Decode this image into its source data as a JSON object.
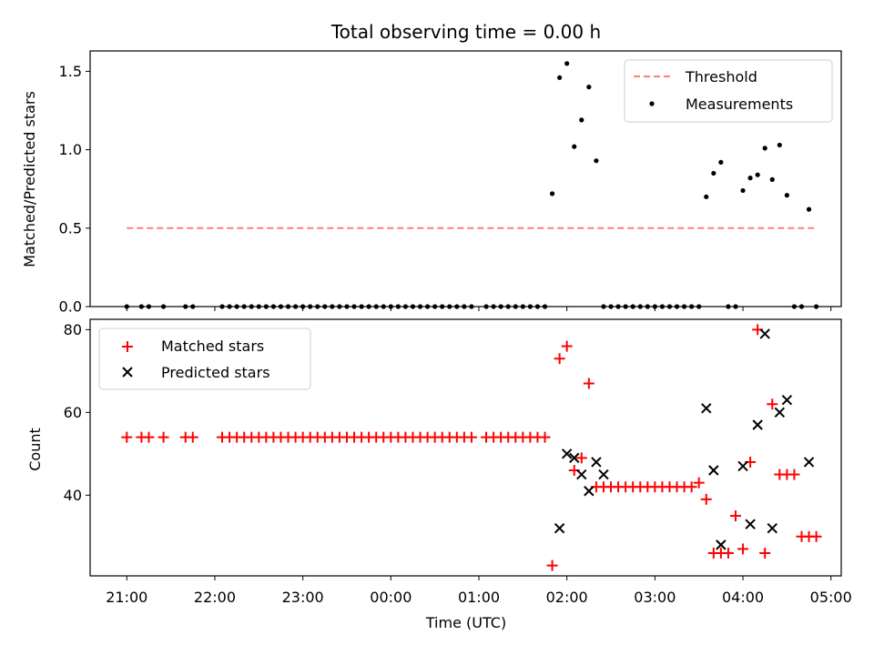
{
  "colors": {
    "threshold": "#ff7f7f",
    "measurements": "#000000",
    "matched": "#ff0000",
    "predicted": "#000000"
  },
  "chart_data": [
    {
      "type": "scatter",
      "title": "Total observing time = 0.00 h",
      "xlabel": "",
      "ylabel": "Matched/Predicted stars",
      "xlim": [
        "20:35",
        "05:07"
      ],
      "ylim": [
        0,
        1.63
      ],
      "yticks": [
        0.0,
        0.5,
        1.0,
        1.5
      ],
      "ytick_labels": [
        "0.0",
        "0.5",
        "1.0",
        "1.5"
      ],
      "legend": {
        "location": "top-right",
        "entries": [
          "Threshold",
          "Measurements"
        ]
      },
      "series": [
        {
          "name": "Threshold",
          "kind": "dashed-line",
          "x": [
            "21:00",
            "04:50"
          ],
          "y": [
            0.5,
            0.5
          ]
        },
        {
          "name": "Measurements",
          "kind": "points",
          "x": [
            "21:00",
            "21:10",
            "21:15",
            "21:25",
            "21:40",
            "21:45",
            "22:05",
            "22:10",
            "22:15",
            "22:20",
            "22:25",
            "22:30",
            "22:35",
            "22:40",
            "22:45",
            "22:50",
            "22:55",
            "23:00",
            "23:05",
            "23:10",
            "23:15",
            "23:20",
            "23:25",
            "23:30",
            "23:35",
            "23:40",
            "23:45",
            "23:50",
            "23:55",
            "00:00",
            "00:05",
            "00:10",
            "00:15",
            "00:20",
            "00:25",
            "00:30",
            "00:35",
            "00:40",
            "00:45",
            "00:50",
            "00:55",
            "01:05",
            "01:10",
            "01:15",
            "01:20",
            "01:25",
            "01:30",
            "01:35",
            "01:40",
            "01:45",
            "01:50",
            "01:55",
            "02:00",
            "02:05",
            "02:10",
            "02:15",
            "02:20",
            "02:25",
            "02:30",
            "02:35",
            "02:40",
            "02:45",
            "02:50",
            "02:55",
            "03:00",
            "03:05",
            "03:10",
            "03:15",
            "03:20",
            "03:25",
            "03:30",
            "03:35",
            "03:40",
            "03:45",
            "03:50",
            "03:55",
            "04:00",
            "04:05",
            "04:10",
            "04:15",
            "04:20",
            "04:25",
            "04:30",
            "04:35",
            "04:40",
            "04:45",
            "04:50"
          ],
          "y": [
            0,
            0,
            0,
            0,
            0,
            0,
            0,
            0,
            0,
            0,
            0,
            0,
            0,
            0,
            0,
            0,
            0,
            0,
            0,
            0,
            0,
            0,
            0,
            0,
            0,
            0,
            0,
            0,
            0,
            0,
            0,
            0,
            0,
            0,
            0,
            0,
            0,
            0,
            0,
            0,
            0,
            0,
            0,
            0,
            0,
            0,
            0,
            0,
            0,
            0,
            0.72,
            1.46,
            1.55,
            1.02,
            1.19,
            1.4,
            0.93,
            0,
            0,
            0,
            0,
            0,
            0,
            0,
            0,
            0,
            0,
            0,
            0,
            0,
            0,
            0.7,
            0.85,
            0.92,
            0,
            0,
            0.74,
            0.82,
            0.84,
            1.01,
            0.81,
            1.03,
            0.71,
            0,
            0,
            0.62,
            0
          ]
        }
      ]
    },
    {
      "type": "scatter",
      "title": "",
      "xlabel": "Time (UTC)",
      "ylabel": "Count",
      "xlim": [
        "20:35",
        "05:07"
      ],
      "ylim": [
        20.5,
        82.5
      ],
      "yticks": [
        40,
        60,
        80
      ],
      "ytick_labels": [
        "40",
        "60",
        "80"
      ],
      "xticks": [
        "21:00",
        "22:00",
        "23:00",
        "00:00",
        "01:00",
        "02:00",
        "03:00",
        "04:00",
        "05:00"
      ],
      "legend": {
        "location": "top-left",
        "entries": [
          "Matched stars",
          "Predicted stars"
        ]
      },
      "series": [
        {
          "name": "Matched stars",
          "kind": "plus",
          "x": [
            "21:00",
            "21:10",
            "21:15",
            "21:25",
            "21:40",
            "21:45",
            "22:05",
            "22:10",
            "22:15",
            "22:20",
            "22:25",
            "22:30",
            "22:35",
            "22:40",
            "22:45",
            "22:50",
            "22:55",
            "23:00",
            "23:05",
            "23:10",
            "23:15",
            "23:20",
            "23:25",
            "23:30",
            "23:35",
            "23:40",
            "23:45",
            "23:50",
            "23:55",
            "00:00",
            "00:05",
            "00:10",
            "00:15",
            "00:20",
            "00:25",
            "00:30",
            "00:35",
            "00:40",
            "00:45",
            "00:50",
            "00:55",
            "01:05",
            "01:10",
            "01:15",
            "01:20",
            "01:25",
            "01:30",
            "01:35",
            "01:40",
            "01:45",
            "01:50",
            "01:55",
            "02:00",
            "02:05",
            "02:10",
            "02:15",
            "02:20",
            "02:25",
            "02:30",
            "02:35",
            "02:40",
            "02:45",
            "02:50",
            "02:55",
            "03:00",
            "03:05",
            "03:10",
            "03:15",
            "03:20",
            "03:25",
            "03:30",
            "03:35",
            "03:40",
            "03:45",
            "03:50",
            "03:55",
            "04:00",
            "04:05",
            "04:10",
            "04:15",
            "04:20",
            "04:25",
            "04:30",
            "04:35",
            "04:40",
            "04:45",
            "04:50"
          ],
          "y": [
            54,
            54,
            54,
            54,
            54,
            54,
            54,
            54,
            54,
            54,
            54,
            54,
            54,
            54,
            54,
            54,
            54,
            54,
            54,
            54,
            54,
            54,
            54,
            54,
            54,
            54,
            54,
            54,
            54,
            54,
            54,
            54,
            54,
            54,
            54,
            54,
            54,
            54,
            54,
            54,
            54,
            54,
            54,
            54,
            54,
            54,
            54,
            54,
            54,
            54,
            23,
            73,
            76,
            46,
            49,
            67,
            42,
            42,
            42,
            42,
            42,
            42,
            42,
            42,
            42,
            42,
            42,
            42,
            42,
            42,
            43,
            39,
            26,
            26,
            26,
            35,
            27,
            48,
            80,
            26,
            62,
            45,
            45,
            45,
            30,
            30,
            30
          ]
        },
        {
          "name": "Predicted stars",
          "kind": "x",
          "x": [
            "01:55",
            "02:00",
            "02:05",
            "02:10",
            "02:15",
            "02:20",
            "02:25",
            "03:35",
            "03:40",
            "03:45",
            "04:00",
            "04:05",
            "04:10",
            "04:15",
            "04:20",
            "04:25",
            "04:30",
            "04:45"
          ],
          "y": [
            32,
            50,
            49,
            45,
            41,
            48,
            45,
            61,
            46,
            28,
            47,
            33,
            57,
            79,
            32,
            60,
            63,
            48
          ]
        }
      ]
    }
  ]
}
